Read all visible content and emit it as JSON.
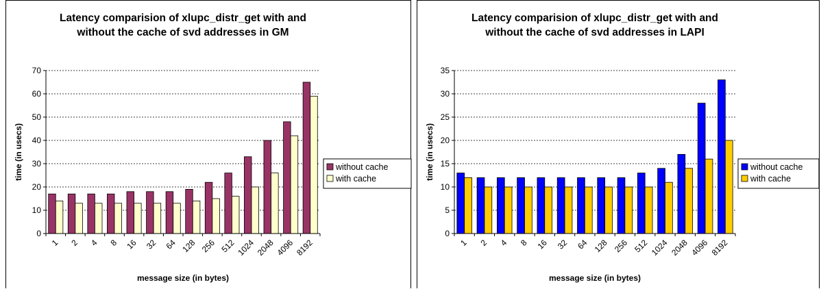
{
  "chart_data": [
    {
      "type": "bar",
      "title": [
        "Latency comparision of xlupc_distr_get with and",
        "without the cache of svd addresses in GM"
      ],
      "xlabel": "message size (in bytes)",
      "ylabel": "time (in usecs)",
      "ylim": [
        0,
        70
      ],
      "ytick_step": 10,
      "grid": true,
      "legend_position": "right",
      "categories": [
        "1",
        "2",
        "4",
        "8",
        "16",
        "32",
        "64",
        "128",
        "256",
        "512",
        "1024",
        "2048",
        "4096",
        "8192"
      ],
      "series": [
        {
          "name": "without cache",
          "color": "#993366",
          "values": [
            17,
            17,
            17,
            17,
            18,
            18,
            18,
            19,
            22,
            26,
            33,
            40,
            48,
            65
          ]
        },
        {
          "name": "with cache",
          "color": "#FFFFCC",
          "values": [
            14,
            13,
            13,
            13,
            13,
            13,
            13,
            14,
            15,
            16,
            20,
            26,
            42,
            59
          ]
        }
      ]
    },
    {
      "type": "bar",
      "title": [
        "Latency comparision of xlupc_distr_get with and",
        "without the cache of svd addresses in LAPI"
      ],
      "xlabel": "message size (in bytes)",
      "ylabel": "time (in usecs)",
      "ylim": [
        0,
        35
      ],
      "ytick_step": 5,
      "grid": true,
      "legend_position": "right",
      "categories": [
        "1",
        "2",
        "4",
        "8",
        "16",
        "32",
        "64",
        "128",
        "256",
        "512",
        "1024",
        "2048",
        "4096",
        "8192"
      ],
      "series": [
        {
          "name": "without cache",
          "color": "#0000FF",
          "values": [
            13,
            12,
            12,
            12,
            12,
            12,
            12,
            12,
            12,
            13,
            14,
            17,
            28,
            33
          ]
        },
        {
          "name": "with cache",
          "color": "#FFCC00",
          "values": [
            12,
            10,
            10,
            10,
            10,
            10,
            10,
            10,
            10,
            10,
            11,
            14,
            16,
            20
          ]
        }
      ]
    }
  ]
}
